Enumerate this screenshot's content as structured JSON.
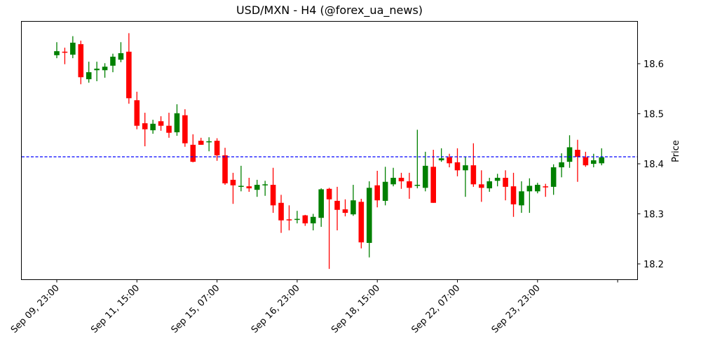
{
  "chart_data": {
    "type": "candlestick",
    "title": "USD/MXN - H4 (@forex_ua_news)",
    "xlabel": "",
    "ylabel": "Price",
    "ylim": [
      18.168,
      18.685
    ],
    "y_ticks": [
      18.2,
      18.3,
      18.4,
      18.5,
      18.6
    ],
    "y_tick_labels": [
      "18.2",
      "18.3",
      "18.4",
      "18.5",
      "18.6"
    ],
    "x_tick_labels": [
      "Sep 09, 23:00",
      "Sep 11, 15:00",
      "Sep 15, 07:00",
      "Sep 16, 23:00",
      "Sep 18, 15:00",
      "Sep 22, 07:00",
      "Sep 23, 23:00",
      ""
    ],
    "x_tick_indices": [
      0,
      10,
      20,
      30,
      40,
      50,
      60,
      70
    ],
    "y_axis_position": "right",
    "grid": false,
    "legend": null,
    "horizontal_line": {
      "value": 18.414,
      "color": "#0000ff",
      "style": "dashed"
    },
    "colors": {
      "up": "#008000",
      "down": "#ff0000"
    },
    "candles": [
      {
        "o": 18.617,
        "h": 18.643,
        "l": 18.611,
        "c": 18.625
      },
      {
        "o": 18.624,
        "h": 18.632,
        "l": 18.599,
        "c": 18.622
      },
      {
        "o": 18.618,
        "h": 18.655,
        "l": 18.611,
        "c": 18.642
      },
      {
        "o": 18.639,
        "h": 18.646,
        "l": 18.559,
        "c": 18.573
      },
      {
        "o": 18.569,
        "h": 18.604,
        "l": 18.562,
        "c": 18.583
      },
      {
        "o": 18.587,
        "h": 18.604,
        "l": 18.565,
        "c": 18.59
      },
      {
        "o": 18.587,
        "h": 18.601,
        "l": 18.572,
        "c": 18.594
      },
      {
        "o": 18.596,
        "h": 18.62,
        "l": 18.583,
        "c": 18.614
      },
      {
        "o": 18.608,
        "h": 18.643,
        "l": 18.603,
        "c": 18.621
      },
      {
        "o": 18.624,
        "h": 18.661,
        "l": 18.52,
        "c": 18.531
      },
      {
        "o": 18.527,
        "h": 18.544,
        "l": 18.469,
        "c": 18.476
      },
      {
        "o": 18.481,
        "h": 18.502,
        "l": 18.435,
        "c": 18.469
      },
      {
        "o": 18.467,
        "h": 18.488,
        "l": 18.46,
        "c": 18.48
      },
      {
        "o": 18.485,
        "h": 18.495,
        "l": 18.466,
        "c": 18.476
      },
      {
        "o": 18.476,
        "h": 18.502,
        "l": 18.452,
        "c": 18.462
      },
      {
        "o": 18.463,
        "h": 18.519,
        "l": 18.456,
        "c": 18.501
      },
      {
        "o": 18.497,
        "h": 18.509,
        "l": 18.434,
        "c": 18.441
      },
      {
        "o": 18.438,
        "h": 18.459,
        "l": 18.403,
        "c": 18.404
      },
      {
        "o": 18.446,
        "h": 18.452,
        "l": 18.438,
        "c": 18.438
      },
      {
        "o": 18.444,
        "h": 18.453,
        "l": 18.425,
        "c": 18.445
      },
      {
        "o": 18.446,
        "h": 18.451,
        "l": 18.406,
        "c": 18.417
      },
      {
        "o": 18.417,
        "h": 18.432,
        "l": 18.358,
        "c": 18.361
      },
      {
        "o": 18.368,
        "h": 18.382,
        "l": 18.32,
        "c": 18.357
      },
      {
        "o": 18.354,
        "h": 18.396,
        "l": 18.345,
        "c": 18.356
      },
      {
        "o": 18.355,
        "h": 18.372,
        "l": 18.344,
        "c": 18.351
      },
      {
        "o": 18.348,
        "h": 18.368,
        "l": 18.334,
        "c": 18.358
      },
      {
        "o": 18.358,
        "h": 18.366,
        "l": 18.336,
        "c": 18.359
      },
      {
        "o": 18.358,
        "h": 18.392,
        "l": 18.302,
        "c": 18.317
      },
      {
        "o": 18.322,
        "h": 18.338,
        "l": 18.262,
        "c": 18.287
      },
      {
        "o": 18.289,
        "h": 18.317,
        "l": 18.267,
        "c": 18.287
      },
      {
        "o": 18.289,
        "h": 18.306,
        "l": 18.281,
        "c": 18.29
      },
      {
        "o": 18.297,
        "h": 18.298,
        "l": 18.276,
        "c": 18.281
      },
      {
        "o": 18.281,
        "h": 18.3,
        "l": 18.267,
        "c": 18.294
      },
      {
        "o": 18.292,
        "h": 18.351,
        "l": 18.274,
        "c": 18.349
      },
      {
        "o": 18.35,
        "h": 18.352,
        "l": 18.19,
        "c": 18.329
      },
      {
        "o": 18.326,
        "h": 18.354,
        "l": 18.267,
        "c": 18.308
      },
      {
        "o": 18.309,
        "h": 18.329,
        "l": 18.295,
        "c": 18.302
      },
      {
        "o": 18.299,
        "h": 18.358,
        "l": 18.296,
        "c": 18.327
      },
      {
        "o": 18.324,
        "h": 18.33,
        "l": 18.231,
        "c": 18.243
      },
      {
        "o": 18.242,
        "h": 18.365,
        "l": 18.213,
        "c": 18.352
      },
      {
        "o": 18.357,
        "h": 18.386,
        "l": 18.313,
        "c": 18.327
      },
      {
        "o": 18.326,
        "h": 18.394,
        "l": 18.317,
        "c": 18.364
      },
      {
        "o": 18.359,
        "h": 18.392,
        "l": 18.355,
        "c": 18.372
      },
      {
        "o": 18.372,
        "h": 18.382,
        "l": 18.35,
        "c": 18.365
      },
      {
        "o": 18.365,
        "h": 18.382,
        "l": 18.33,
        "c": 18.352
      },
      {
        "o": 18.357,
        "h": 18.468,
        "l": 18.351,
        "c": 18.358
      },
      {
        "o": 18.352,
        "h": 18.424,
        "l": 18.345,
        "c": 18.396
      },
      {
        "o": 18.394,
        "h": 18.428,
        "l": 18.322,
        "c": 18.322
      },
      {
        "o": 18.407,
        "h": 18.431,
        "l": 18.404,
        "c": 18.411
      },
      {
        "o": 18.413,
        "h": 18.42,
        "l": 18.393,
        "c": 18.401
      },
      {
        "o": 18.403,
        "h": 18.431,
        "l": 18.375,
        "c": 18.387
      },
      {
        "o": 18.387,
        "h": 18.414,
        "l": 18.334,
        "c": 18.397
      },
      {
        "o": 18.397,
        "h": 18.441,
        "l": 18.354,
        "c": 18.359
      },
      {
        "o": 18.359,
        "h": 18.387,
        "l": 18.324,
        "c": 18.352
      },
      {
        "o": 18.351,
        "h": 18.372,
        "l": 18.344,
        "c": 18.365
      },
      {
        "o": 18.366,
        "h": 18.38,
        "l": 18.355,
        "c": 18.372
      },
      {
        "o": 18.372,
        "h": 18.387,
        "l": 18.327,
        "c": 18.354
      },
      {
        "o": 18.355,
        "h": 18.382,
        "l": 18.294,
        "c": 18.319
      },
      {
        "o": 18.317,
        "h": 18.365,
        "l": 18.302,
        "c": 18.345
      },
      {
        "o": 18.345,
        "h": 18.371,
        "l": 18.302,
        "c": 18.356
      },
      {
        "o": 18.345,
        "h": 18.362,
        "l": 18.341,
        "c": 18.358
      },
      {
        "o": 18.355,
        "h": 18.36,
        "l": 18.334,
        "c": 18.354
      },
      {
        "o": 18.354,
        "h": 18.399,
        "l": 18.338,
        "c": 18.393
      },
      {
        "o": 18.393,
        "h": 18.421,
        "l": 18.373,
        "c": 18.403
      },
      {
        "o": 18.404,
        "h": 18.457,
        "l": 18.392,
        "c": 18.433
      },
      {
        "o": 18.428,
        "h": 18.448,
        "l": 18.364,
        "c": 18.414
      },
      {
        "o": 18.413,
        "h": 18.424,
        "l": 18.394,
        "c": 18.397
      },
      {
        "o": 18.4,
        "h": 18.42,
        "l": 18.393,
        "c": 18.407
      },
      {
        "o": 18.401,
        "h": 18.431,
        "l": 18.397,
        "c": 18.413
      }
    ]
  }
}
